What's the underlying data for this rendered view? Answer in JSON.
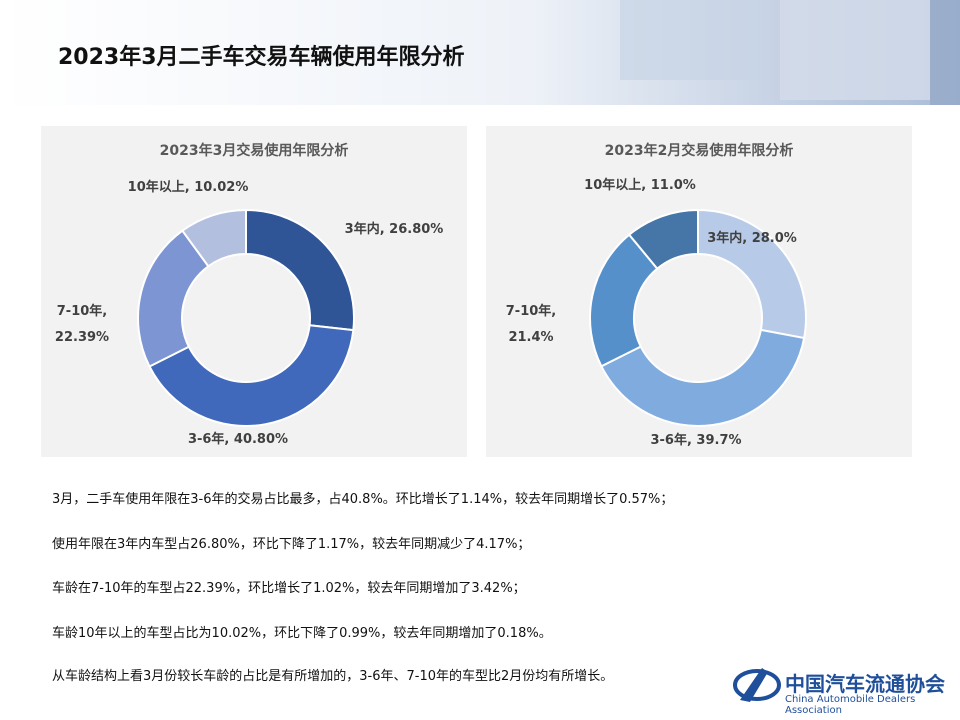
{
  "header": {
    "title": "2023年3月二手车交易车辆使用年限分析"
  },
  "chart_data": [
    {
      "type": "donut",
      "title": "2023年3月交易使用年限分析",
      "labels": [
        "3年内, 26.80%",
        "3-6年, 40.80%",
        "7-10年,\n22.39%",
        "10年以上, 10.02%"
      ],
      "values": [
        26.8,
        40.8,
        22.39,
        10.02
      ],
      "colors": [
        "#2f5597",
        "#4069bb",
        "#7d95d3",
        "#b3bfdf"
      ]
    },
    {
      "type": "donut",
      "title": "2023年2月交易使用年限分析",
      "labels": [
        "3年内, 28.0%",
        "3-6年, 39.7%",
        "7-10年,\n21.4%",
        "10年以上, 11.0%"
      ],
      "values": [
        28.0,
        39.7,
        21.4,
        11.0
      ],
      "colors": [
        "#b7cbe8",
        "#80abdf",
        "#5590cb",
        "#4576a7"
      ]
    }
  ],
  "notes": [
    "3月，二手车使用年限在3-6年的交易占比最多，占40.8%。环比增长了1.14%，较去年同期增长了0.57%；",
    "使用年限在3年内车型占26.80%，环比下降了1.17%，较去年同期减少了4.17%；",
    "车龄在7-10年的车型占22.39%，环比增长了1.02%，较去年同期增加了3.42%；",
    "车龄10年以上的车型占比为10.02%，环比下降了0.99%，较去年同期增加了0.18%。",
    "从车龄结构上看3月份较长车龄的占比是有所增加的，3-6年、7-10年的车型比2月份均有所增长。"
  ],
  "logo": {
    "name_cn": "中国汽车流通协会",
    "name_en": "China Automobile Dealers Association"
  }
}
